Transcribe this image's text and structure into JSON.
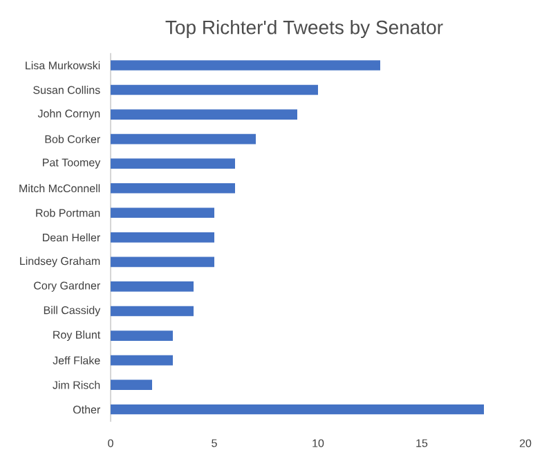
{
  "chart_data": {
    "type": "bar",
    "orientation": "horizontal",
    "title": "Top Richter'd Tweets by Senator",
    "categories": [
      "Lisa Murkowski",
      "Susan Collins",
      "John Cornyn",
      "Bob Corker",
      "Pat Toomey",
      "Mitch McConnell",
      "Rob Portman",
      "Dean Heller",
      "Lindsey Graham",
      "Cory Gardner",
      "Bill Cassidy",
      "Roy Blunt",
      "Jeff Flake",
      "Jim Risch",
      "Other"
    ],
    "values": [
      13,
      10,
      9,
      7,
      6,
      6,
      5,
      5,
      5,
      4,
      4,
      3,
      3,
      2,
      18
    ],
    "color": "#4472c4",
    "xlim": [
      0,
      20
    ],
    "xticks": [
      0,
      5,
      10,
      15,
      20
    ]
  }
}
